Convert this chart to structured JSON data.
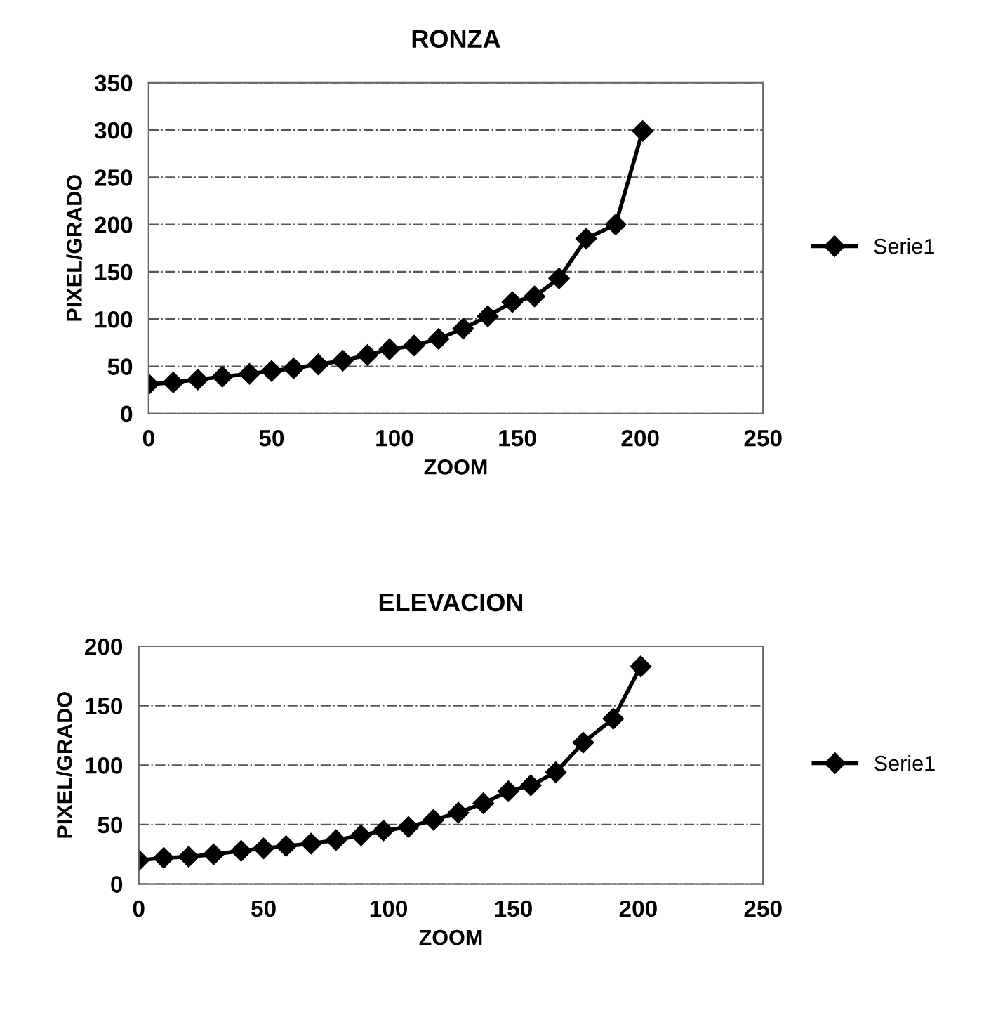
{
  "chart_data": [
    {
      "type": "line",
      "title": "RONZA",
      "xlabel": "ZOOM",
      "ylabel": "PIXEL/GRADO",
      "xlim": [
        0,
        250
      ],
      "xticks": [
        0,
        50,
        100,
        150,
        200,
        250
      ],
      "ylim": [
        0,
        350
      ],
      "yticks": [
        0,
        50,
        100,
        150,
        200,
        250,
        300,
        350
      ],
      "grid": "y",
      "legend": "right",
      "marker": "diamond",
      "line_style": "solid",
      "series": [
        {
          "name": "Serie1",
          "color": "#000000",
          "x": [
            0,
            10,
            20,
            30,
            41,
            50,
            59,
            69,
            79,
            89,
            98,
            108,
            118,
            128,
            138,
            148,
            157,
            167,
            178,
            190,
            201
          ],
          "values": [
            31,
            33,
            36,
            39,
            42,
            45,
            48,
            52,
            56,
            62,
            68,
            72,
            79,
            90,
            103,
            118,
            124,
            143,
            185,
            200,
            299
          ]
        }
      ]
    },
    {
      "type": "line",
      "title": "ELEVACION",
      "xlabel": "ZOOM",
      "ylabel": "PIXEL/GRADO",
      "xlim": [
        0,
        250
      ],
      "xticks": [
        0,
        50,
        100,
        150,
        200,
        250
      ],
      "ylim": [
        0,
        200
      ],
      "yticks": [
        0,
        50,
        100,
        150,
        200
      ],
      "grid": "y",
      "legend": "right",
      "marker": "diamond",
      "line_style": "solid",
      "series": [
        {
          "name": "Serie1",
          "color": "#000000",
          "x": [
            0,
            10,
            20,
            30,
            41,
            50,
            59,
            69,
            79,
            89,
            98,
            108,
            118,
            128,
            138,
            148,
            157,
            167,
            178,
            190,
            201
          ],
          "values": [
            20,
            22,
            23,
            25,
            28,
            30,
            32,
            34,
            37,
            41,
            45,
            48,
            54,
            60,
            68,
            78,
            83,
            94,
            119,
            139,
            183
          ]
        }
      ]
    }
  ]
}
